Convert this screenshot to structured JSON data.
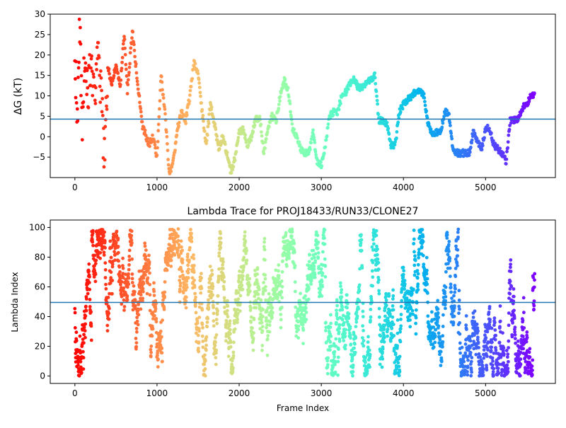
{
  "chart_data": [
    {
      "type": "scatter",
      "title": "",
      "xlabel": "",
      "ylabel": "ΔG (kT)",
      "xlim": [
        -300,
        5850
      ],
      "ylim": [
        -10,
        30
      ],
      "x_ticks": [
        0,
        1000,
        2000,
        3000,
        4000,
        5000
      ],
      "y_ticks": [
        -5,
        0,
        5,
        10,
        15,
        20,
        25,
        30
      ],
      "hline": 4.3,
      "hline_color": "#1f77b4",
      "colormap": "rainbow (red at frame 0 to violet at last frame)",
      "grid": false,
      "n_frames": 5600,
      "trace_keyframes": [
        [
          0,
          20
        ],
        [
          30,
          5
        ],
        [
          60,
          28
        ],
        [
          90,
          3
        ],
        [
          120,
          22
        ],
        [
          160,
          12
        ],
        [
          200,
          20
        ],
        [
          240,
          8
        ],
        [
          280,
          24
        ],
        [
          320,
          10
        ],
        [
          360,
          -5
        ],
        [
          400,
          17
        ],
        [
          450,
          13
        ],
        [
          500,
          18
        ],
        [
          550,
          12
        ],
        [
          600,
          25
        ],
        [
          640,
          11
        ],
        [
          700,
          26
        ],
        [
          760,
          14
        ],
        [
          820,
          3
        ],
        [
          900,
          -2
        ],
        [
          950,
          0
        ],
        [
          1000,
          -5
        ],
        [
          1050,
          15
        ],
        [
          1100,
          5
        ],
        [
          1150,
          -9
        ],
        [
          1200,
          -6
        ],
        [
          1250,
          2
        ],
        [
          1300,
          6
        ],
        [
          1350,
          4
        ],
        [
          1400,
          10
        ],
        [
          1450,
          18
        ],
        [
          1500,
          16
        ],
        [
          1550,
          6
        ],
        [
          1600,
          -2
        ],
        [
          1650,
          8
        ],
        [
          1700,
          3
        ],
        [
          1750,
          -3
        ],
        [
          1800,
          0
        ],
        [
          1850,
          -4
        ],
        [
          1900,
          -9
        ],
        [
          1950,
          -5
        ],
        [
          2000,
          1
        ],
        [
          2050,
          2
        ],
        [
          2100,
          -2
        ],
        [
          2150,
          0
        ],
        [
          2200,
          4
        ],
        [
          2250,
          5
        ],
        [
          2300,
          -4
        ],
        [
          2350,
          2
        ],
        [
          2400,
          5
        ],
        [
          2450,
          4
        ],
        [
          2500,
          10
        ],
        [
          2550,
          14
        ],
        [
          2600,
          11
        ],
        [
          2650,
          2
        ],
        [
          2700,
          0
        ],
        [
          2750,
          -3
        ],
        [
          2800,
          -4
        ],
        [
          2850,
          -4
        ],
        [
          2900,
          1
        ],
        [
          2950,
          -6
        ],
        [
          3000,
          -7
        ],
        [
          3050,
          -2
        ],
        [
          3100,
          5
        ],
        [
          3150,
          6
        ],
        [
          3200,
          6
        ],
        [
          3250,
          10
        ],
        [
          3300,
          11
        ],
        [
          3350,
          13
        ],
        [
          3400,
          14
        ],
        [
          3450,
          12
        ],
        [
          3500,
          12
        ],
        [
          3550,
          13
        ],
        [
          3600,
          14
        ],
        [
          3650,
          15
        ],
        [
          3700,
          4
        ],
        [
          3750,
          4
        ],
        [
          3800,
          3
        ],
        [
          3850,
          -2
        ],
        [
          3900,
          -2
        ],
        [
          3950,
          6
        ],
        [
          4000,
          8
        ],
        [
          4050,
          9
        ],
        [
          4100,
          10
        ],
        [
          4150,
          11
        ],
        [
          4200,
          11
        ],
        [
          4250,
          10
        ],
        [
          4300,
          3
        ],
        [
          4350,
          1
        ],
        [
          4400,
          1
        ],
        [
          4450,
          1
        ],
        [
          4500,
          6
        ],
        [
          4550,
          6
        ],
        [
          4600,
          -3
        ],
        [
          4650,
          -4
        ],
        [
          4700,
          -4
        ],
        [
          4750,
          -4
        ],
        [
          4800,
          -4
        ],
        [
          4850,
          1
        ],
        [
          4900,
          -1
        ],
        [
          4950,
          -3
        ],
        [
          5000,
          2
        ],
        [
          5050,
          2
        ],
        [
          5100,
          -2
        ],
        [
          5150,
          -3
        ],
        [
          5200,
          -4
        ],
        [
          5250,
          -6
        ],
        [
          5300,
          4
        ],
        [
          5350,
          4
        ],
        [
          5400,
          4
        ],
        [
          5450,
          7
        ],
        [
          5500,
          8
        ],
        [
          5560,
          10
        ],
        [
          5599,
          10
        ]
      ]
    },
    {
      "type": "scatter",
      "title": "Lambda Trace for PROJ18433/RUN33/CLONE27",
      "xlabel": "Frame Index",
      "ylabel": "Lambda Index",
      "xlim": [
        -300,
        5850
      ],
      "ylim": [
        -5,
        105
      ],
      "x_ticks": [
        0,
        1000,
        2000,
        3000,
        4000,
        5000
      ],
      "y_ticks": [
        0,
        20,
        40,
        60,
        80,
        100
      ],
      "hline": 49.5,
      "hline_color": "#1f77b4",
      "colormap": "rainbow (red at frame 0 to violet at last frame)",
      "grid": false,
      "n_frames": 5600,
      "value_range": [
        0,
        99
      ]
    }
  ]
}
